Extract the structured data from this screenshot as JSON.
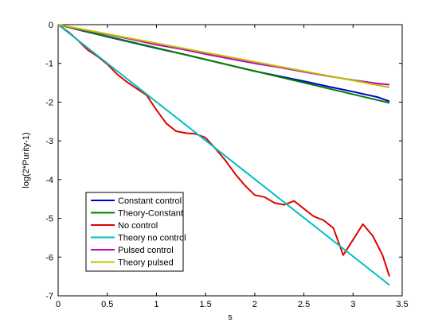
{
  "chart_data": {
    "type": "line",
    "title": "",
    "xlabel": "s",
    "ylabel": "log(2*Purity-1)",
    "xlim": [
      0,
      3.5
    ],
    "ylim": [
      -7,
      0
    ],
    "xticks": [
      "0",
      "0.5",
      "1",
      "1.5",
      "2",
      "2.5",
      "3",
      "3.5"
    ],
    "yticks": [
      "0",
      "-1",
      "-2",
      "-3",
      "-4",
      "-5",
      "-6",
      "-7"
    ],
    "grid": false,
    "legend_position": "bottom-left",
    "series": [
      {
        "name": "Constant control",
        "color": "#0000cc",
        "x": [
          0,
          0.25,
          0.5,
          0.75,
          1.0,
          1.25,
          1.5,
          1.75,
          2.0,
          2.25,
          2.5,
          2.75,
          3.0,
          3.25,
          3.37
        ],
        "y": [
          0,
          -0.16,
          -0.31,
          -0.46,
          -0.61,
          -0.75,
          -0.9,
          -1.05,
          -1.2,
          -1.33,
          -1.46,
          -1.6,
          -1.73,
          -1.87,
          -1.98
        ]
      },
      {
        "name": "Theory-Constant",
        "color": "#008000",
        "x": [
          0,
          3.37
        ],
        "y": [
          0,
          -2.02
        ]
      },
      {
        "name": "No control",
        "color": "#e00000",
        "x": [
          0,
          0.1,
          0.2,
          0.3,
          0.4,
          0.5,
          0.6,
          0.7,
          0.8,
          0.9,
          1.0,
          1.1,
          1.2,
          1.3,
          1.4,
          1.5,
          1.6,
          1.7,
          1.8,
          1.9,
          2.0,
          2.1,
          2.2,
          2.3,
          2.4,
          2.5,
          2.6,
          2.7,
          2.8,
          2.9,
          3.0,
          3.1,
          3.2,
          3.3,
          3.37
        ],
        "y": [
          0,
          -0.18,
          -0.4,
          -0.65,
          -0.82,
          -1.02,
          -1.28,
          -1.48,
          -1.65,
          -1.82,
          -2.2,
          -2.55,
          -2.75,
          -2.8,
          -2.82,
          -2.92,
          -3.2,
          -3.5,
          -3.85,
          -4.15,
          -4.4,
          -4.45,
          -4.6,
          -4.65,
          -4.55,
          -4.75,
          -4.95,
          -5.05,
          -5.25,
          -5.95,
          -5.55,
          -5.15,
          -5.45,
          -5.95,
          -6.5
        ]
      },
      {
        "name": "Theory no control",
        "color": "#00bfbf",
        "x": [
          0,
          3.37
        ],
        "y": [
          0,
          -6.72
        ]
      },
      {
        "name": "Pulsed control",
        "color": "#bf00bf",
        "x": [
          0,
          0.25,
          0.5,
          0.75,
          1.0,
          1.25,
          1.5,
          1.75,
          2.0,
          2.25,
          2.5,
          2.75,
          3.0,
          3.25,
          3.37
        ],
        "y": [
          0,
          -0.13,
          -0.25,
          -0.38,
          -0.52,
          -0.63,
          -0.76,
          -0.88,
          -1.0,
          -1.1,
          -1.22,
          -1.33,
          -1.43,
          -1.52,
          -1.55
        ]
      },
      {
        "name": "Theory pulsed",
        "color": "#bfbf00",
        "x": [
          0,
          3.37
        ],
        "y": [
          0,
          -1.62
        ]
      }
    ]
  }
}
